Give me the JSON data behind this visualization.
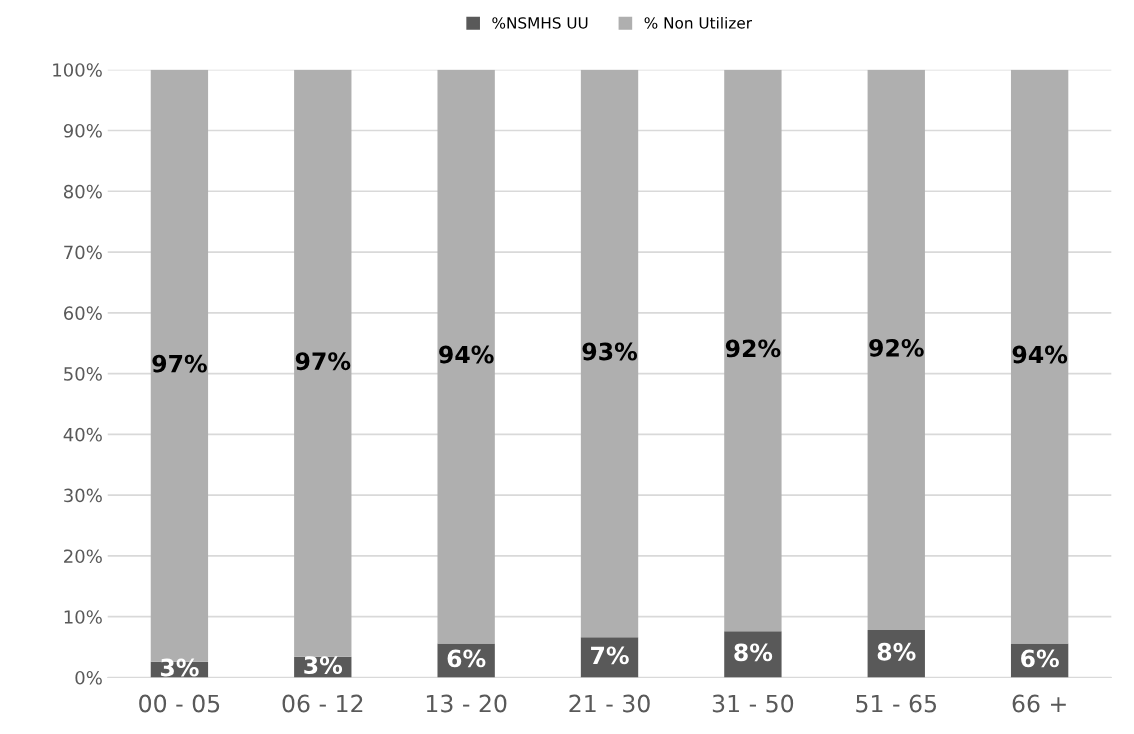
{
  "chart_data": {
    "type": "bar",
    "stacked": true,
    "categories": [
      "00 - 05",
      "06 - 12",
      "13 - 20",
      "21 - 30",
      "31 - 50",
      "51 - 65",
      "66 +"
    ],
    "series": [
      {
        "name": "%NSMHS UU",
        "color": "#595959",
        "values": [
          2.6,
          3.4,
          5.6,
          6.6,
          7.6,
          7.8,
          5.6
        ],
        "value_labels": [
          "3%",
          "3%",
          "6%",
          "7%",
          "8%",
          "8%",
          "6%"
        ]
      },
      {
        "name": "% Non Utilizer",
        "color": "#afafaf",
        "values": [
          97.4,
          96.6,
          94.4,
          93.4,
          92.4,
          92.2,
          94.4
        ],
        "value_labels": [
          "97%",
          "97%",
          "94%",
          "93%",
          "92%",
          "92%",
          "94%"
        ]
      }
    ],
    "ylim": [
      0,
      100
    ],
    "yticks": [
      {
        "value": 0,
        "label": "0%"
      },
      {
        "value": 10,
        "label": "10%"
      },
      {
        "value": 20,
        "label": "20%"
      },
      {
        "value": 30,
        "label": "30%"
      },
      {
        "value": 40,
        "label": "40%"
      },
      {
        "value": 50,
        "label": "50%"
      },
      {
        "value": 60,
        "label": "60%"
      },
      {
        "value": 70,
        "label": "70%"
      },
      {
        "value": 80,
        "label": "80%"
      },
      {
        "value": 90,
        "label": "90%"
      },
      {
        "value": 100,
        "label": "100%"
      }
    ],
    "grid": "y",
    "legend": "top"
  }
}
